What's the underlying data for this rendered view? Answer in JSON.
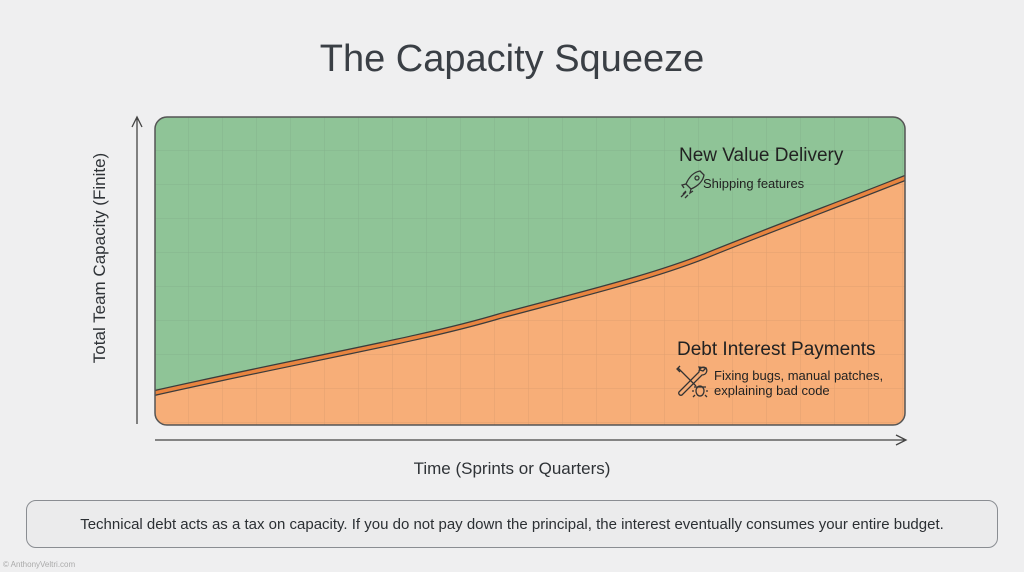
{
  "title": "The Capacity Squeeze",
  "y_axis_label": "Total Team Capacity (Finite)",
  "x_axis_label": "Time (Sprints or Quarters)",
  "regions": {
    "upper": {
      "title": "New Value Delivery",
      "subtitle": "Shipping features",
      "icon": "rocket-icon",
      "color": "#8fc497"
    },
    "lower": {
      "title": "Debt Interest Payments",
      "subtitle_line1": "Fixing bugs, manual patches,",
      "subtitle_line2": "explaining bad code",
      "icon": "wrench-bug-icon",
      "color": "#f7ae78"
    }
  },
  "boundary_color": "#e8843f",
  "note": "Technical debt acts as a tax on capacity. If you do not pay down the principal, the interest eventually consumes your entire budget.",
  "credit": "© AnthonyVeltri.com"
}
